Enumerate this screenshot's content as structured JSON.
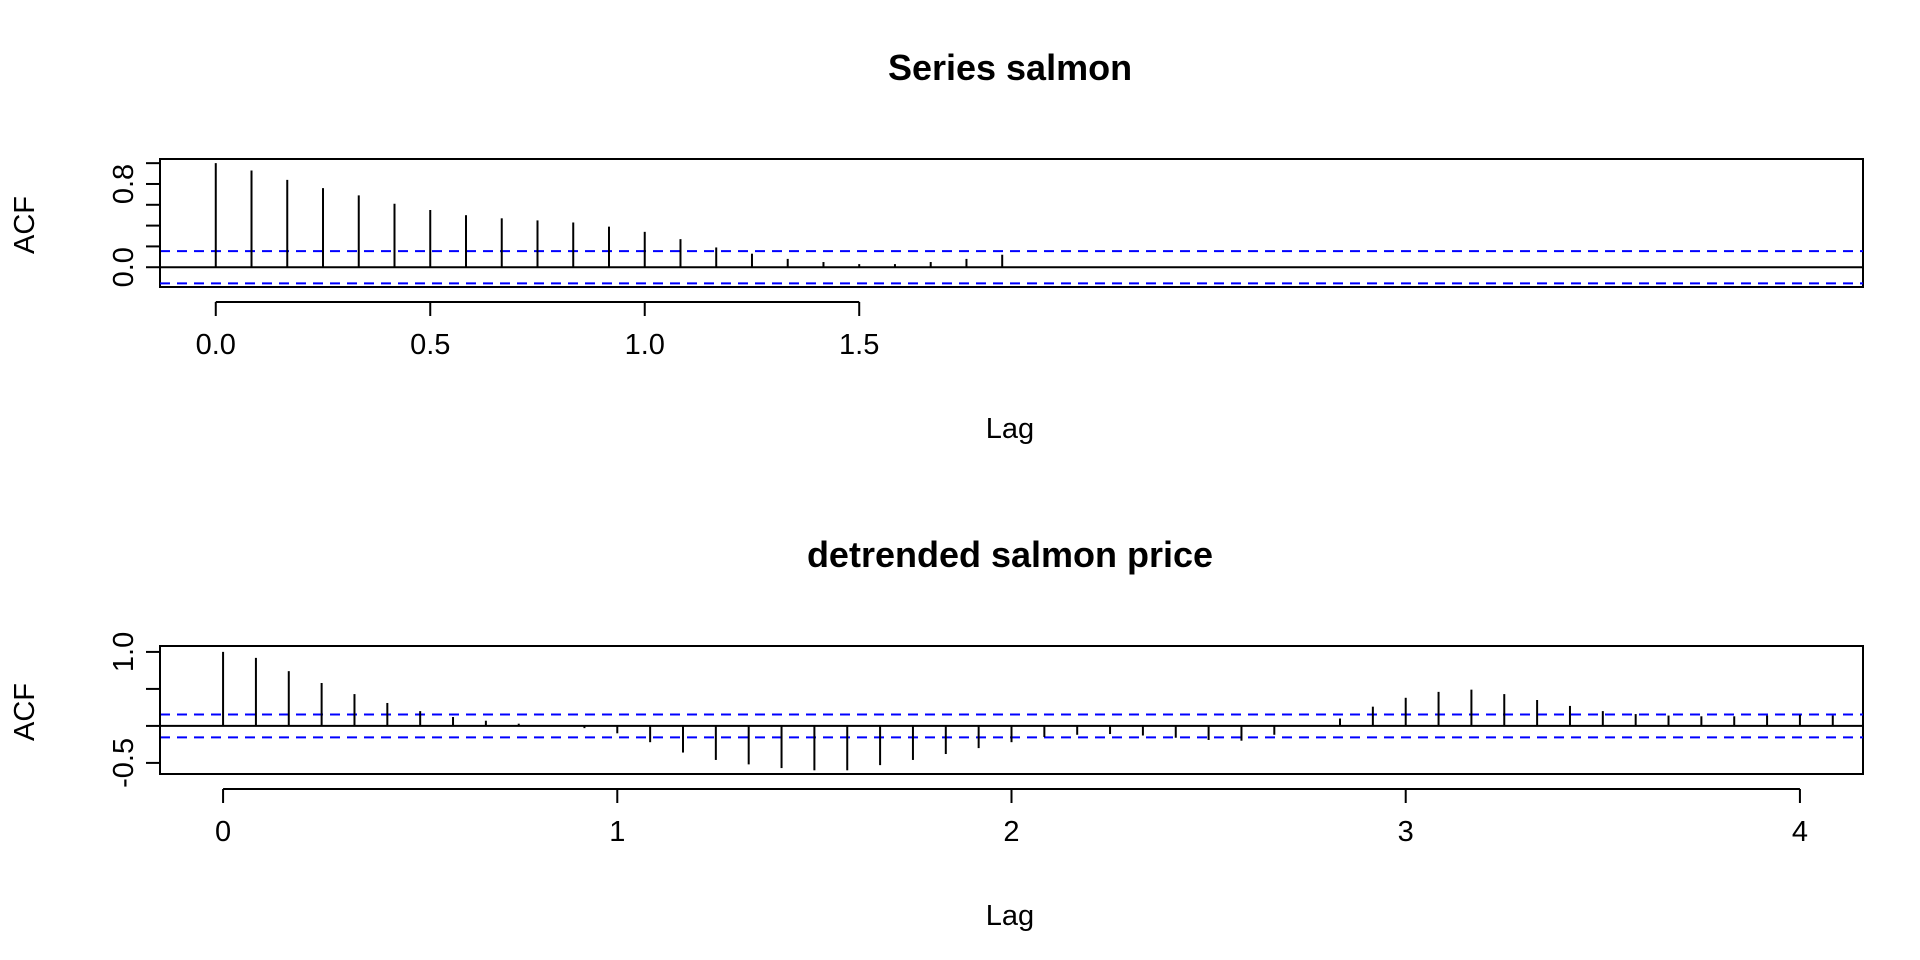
{
  "chart_data": [
    {
      "type": "bar",
      "title": "Series  salmon",
      "xlabel": "Lag",
      "ylabel": "ACF",
      "xlim": [
        -0.13,
        3.84
      ],
      "ylim": [
        -0.19,
        1.04
      ],
      "x_ticks": [
        0,
        0.5,
        1.0,
        1.5
      ],
      "x_tick_labels": [
        "0.0",
        "0.5",
        "1.0",
        "1.5"
      ],
      "y_ticks": [
        0,
        0.2,
        0.4,
        0.6,
        0.8,
        1.0
      ],
      "y_tick_labels": [
        "0.0",
        "",
        "",
        "",
        "0.8",
        ""
      ],
      "conf_limit": 0.155,
      "lag_step": 0.0833333,
      "acf": [
        1.0,
        0.93,
        0.84,
        0.76,
        0.69,
        0.61,
        0.55,
        0.5,
        0.47,
        0.45,
        0.43,
        0.39,
        0.34,
        0.27,
        0.19,
        0.13,
        0.08,
        0.05,
        0.03,
        0.03,
        0.05,
        0.08,
        0.12
      ],
      "colors": {
        "stems": "#000000",
        "confidence": "#0000ff",
        "axis": "#000000"
      }
    },
    {
      "type": "bar",
      "title": "detrended salmon price",
      "xlabel": "Lag",
      "ylabel": "ACF",
      "xlim": [
        -0.16,
        4.16
      ],
      "ylim": [
        -0.65,
        1.08
      ],
      "x_ticks": [
        0,
        1,
        2,
        3,
        4
      ],
      "x_tick_labels": [
        "0",
        "1",
        "2",
        "3",
        "4"
      ],
      "y_ticks": [
        -0.5,
        0,
        0.5,
        1.0
      ],
      "y_tick_labels": [
        "-0.5",
        "",
        "",
        "1.0"
      ],
      "conf_limit": 0.155,
      "lag_step": 0.0833333,
      "acf": [
        1.0,
        0.92,
        0.74,
        0.58,
        0.43,
        0.31,
        0.2,
        0.12,
        0.07,
        0.03,
        0.0,
        -0.03,
        -0.1,
        -0.22,
        -0.36,
        -0.46,
        -0.52,
        -0.57,
        -0.6,
        -0.6,
        -0.53,
        -0.46,
        -0.38,
        -0.3,
        -0.22,
        -0.15,
        -0.12,
        -0.11,
        -0.13,
        -0.16,
        -0.19,
        -0.2,
        -0.12,
        0.0,
        0.1,
        0.26,
        0.38,
        0.46,
        0.49,
        0.43,
        0.35,
        0.27,
        0.2,
        0.16,
        0.14,
        0.13,
        0.13,
        0.14,
        0.15,
        0.14
      ],
      "colors": {
        "stems": "#000000",
        "confidence": "#0000ff",
        "axis": "#000000"
      }
    }
  ]
}
